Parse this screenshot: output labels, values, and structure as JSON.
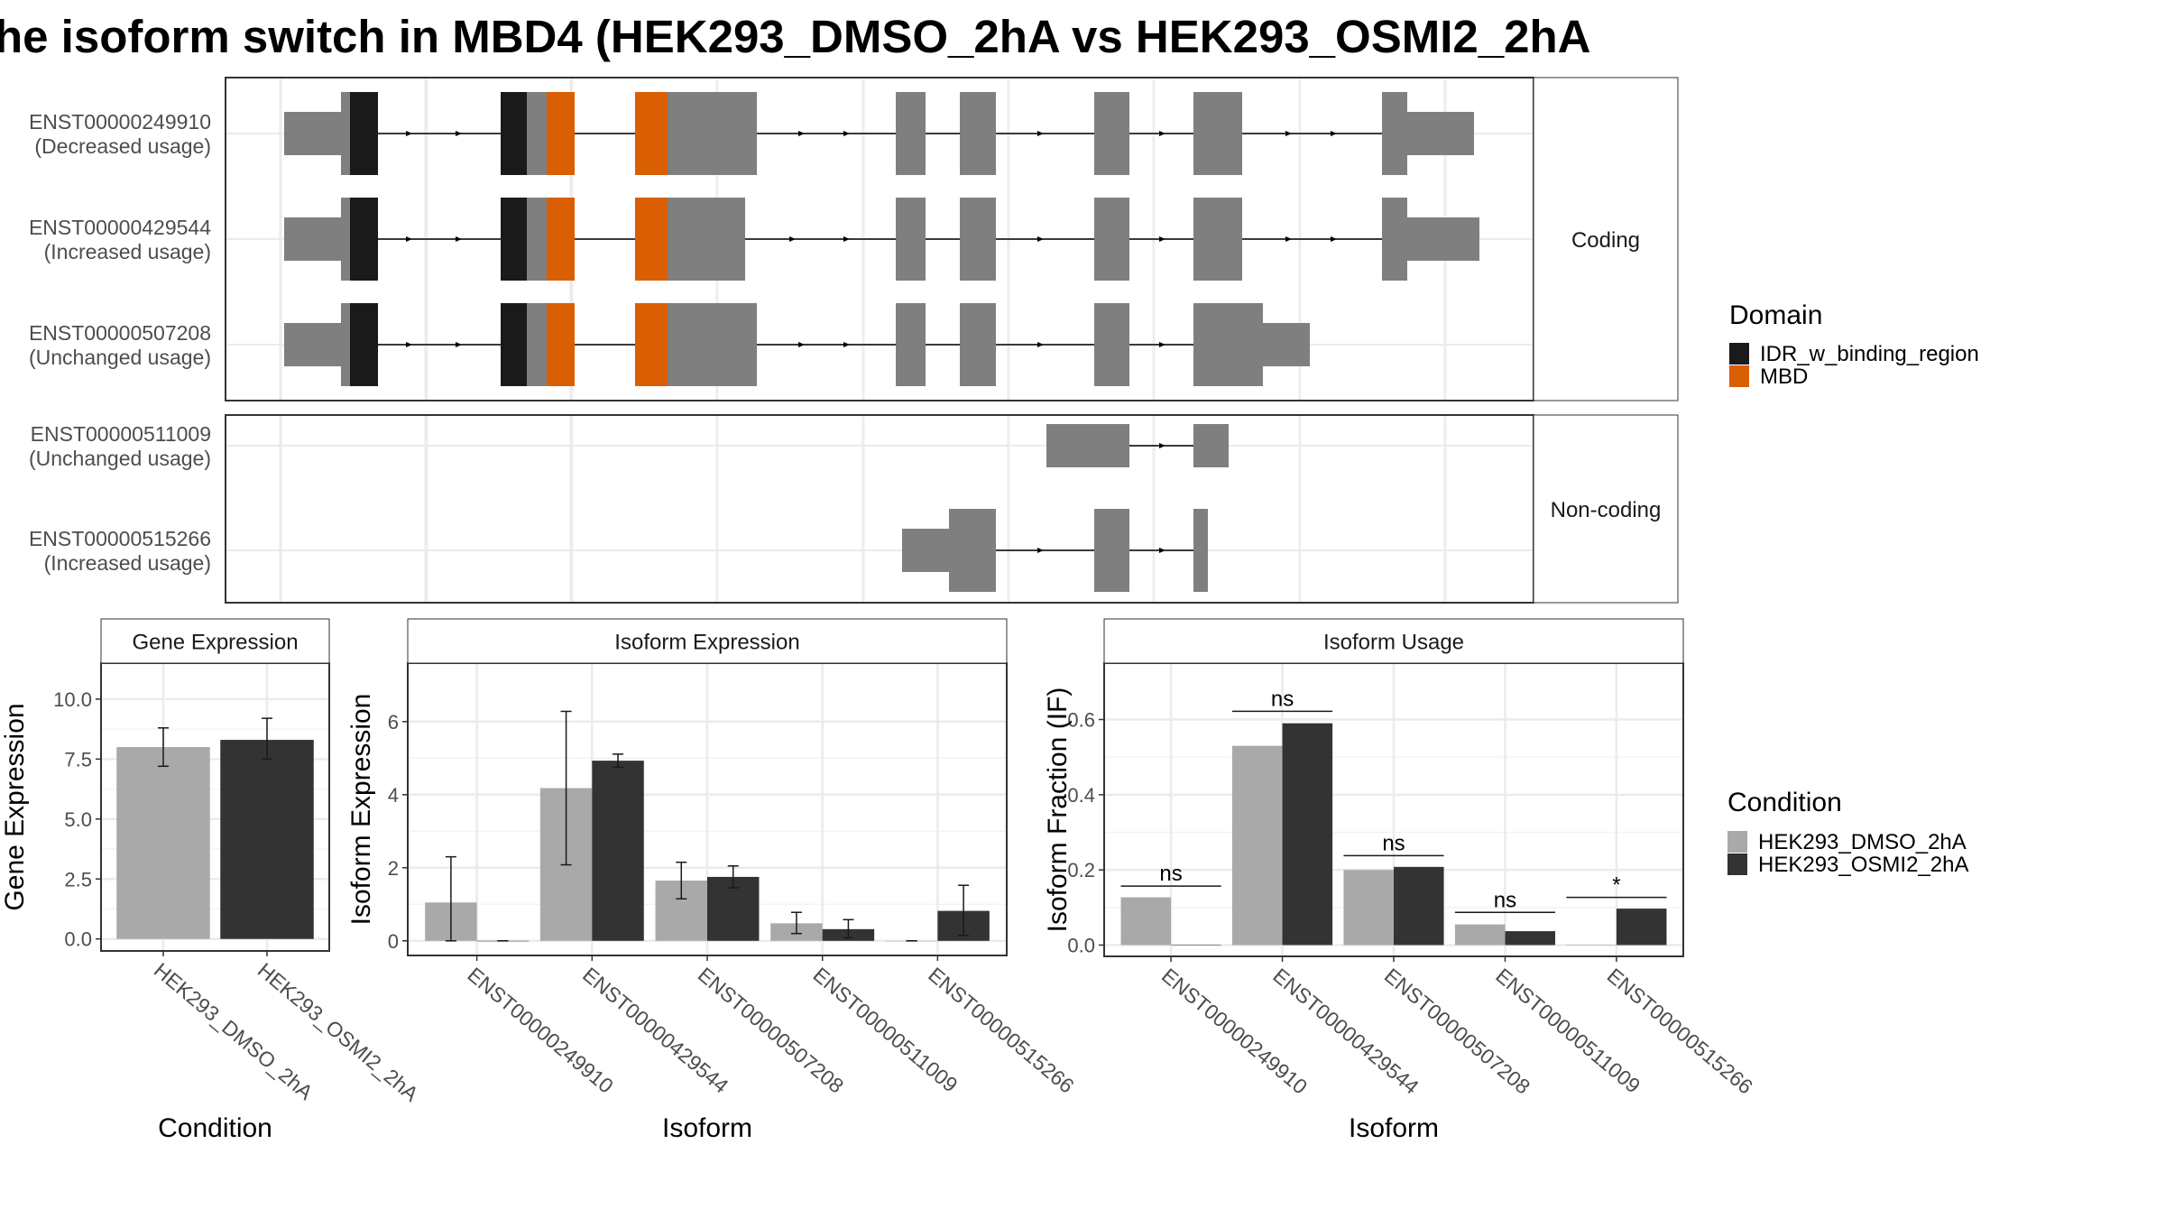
{
  "title": "he isoform switch in MBD4 (HEK293_DMSO_2hA vs HEK293_OSMI2_2hA",
  "colors": {
    "idr": "#1a1a1a",
    "mbd": "#d95f02",
    "exon": "#7f7f7f",
    "cond1": "#a9a9a9",
    "cond2": "#333333",
    "grid": "#ebebeb",
    "strip": "#ffffff"
  },
  "structure": {
    "coding_label": "Coding",
    "noncoding_label": "Non-coding",
    "isoforms": [
      {
        "id": "ENST00000249910",
        "usage": "(Decreased usage)",
        "group": "coding"
      },
      {
        "id": "ENST00000429544",
        "usage": "(Increased usage)",
        "group": "coding"
      },
      {
        "id": "ENST00000507208",
        "usage": "(Unchanged usage)",
        "group": "coding"
      },
      {
        "id": "ENST00000511009",
        "usage": "(Unchanged usage)",
        "group": "noncoding"
      },
      {
        "id": "ENST00000515266",
        "usage": "(Increased usage)",
        "group": "noncoding"
      }
    ]
  },
  "legend_domain": {
    "title": "Domain",
    "items": [
      {
        "label": "IDR_w_binding_region",
        "color": "#1a1a1a"
      },
      {
        "label": "MBD",
        "color": "#d95f02"
      }
    ]
  },
  "legend_condition": {
    "title": "Condition",
    "items": [
      {
        "label": "HEK293_DMSO_2hA",
        "color": "#a9a9a9"
      },
      {
        "label": "HEK293_OSMI2_2hA",
        "color": "#333333"
      }
    ]
  },
  "chart_data": [
    {
      "type": "bar",
      "title": "Gene Expression",
      "xlabel": "Condition",
      "ylabel": "Gene Expression",
      "categories": [
        "HEK293_DMSO_2hA",
        "HEK293_OSMI2_2hA"
      ],
      "values": [
        8.0,
        8.3
      ],
      "error_low": [
        7.2,
        7.5
      ],
      "error_high": [
        8.8,
        9.2
      ],
      "ylim": [
        -0.5,
        11.5
      ],
      "yticks": [
        0.0,
        2.5,
        5.0,
        7.5,
        10.0
      ],
      "ytick_labels": [
        "0.0",
        "2.5",
        "5.0",
        "7.5",
        "10.0"
      ],
      "grid": true
    },
    {
      "type": "bar",
      "title": "Isoform Expression",
      "xlabel": "Isoform",
      "ylabel": "Isoform Expression",
      "categories": [
        "ENST00000249910",
        "ENST00000429544",
        "ENST00000507208",
        "ENST00000511009",
        "ENST00000515266"
      ],
      "series": [
        {
          "name": "HEK293_DMSO_2hA",
          "values": [
            1.05,
            4.18,
            1.65,
            0.48,
            0.0
          ],
          "error_low": [
            0.0,
            2.08,
            1.15,
            0.2,
            0.0
          ],
          "error_high": [
            2.3,
            6.28,
            2.15,
            0.78,
            0.0
          ]
        },
        {
          "name": "HEK293_OSMI2_2hA",
          "values": [
            0.0,
            4.93,
            1.75,
            0.32,
            0.82
          ],
          "error_low": [
            0.0,
            4.75,
            1.45,
            0.08,
            0.15
          ],
          "error_high": [
            0.0,
            5.11,
            2.05,
            0.58,
            1.52
          ]
        }
      ],
      "ylim": [
        -0.4,
        7.6
      ],
      "yticks": [
        0,
        2,
        4,
        6
      ],
      "ytick_labels": [
        "0",
        "2",
        "4",
        "6"
      ],
      "grid": true
    },
    {
      "type": "bar",
      "title": "Isoform Usage",
      "xlabel": "Isoform",
      "ylabel": "Isoform Fraction (IF)",
      "categories": [
        "ENST00000249910",
        "ENST00000429544",
        "ENST00000507208",
        "ENST00000511009",
        "ENST00000515266"
      ],
      "series": [
        {
          "name": "HEK293_DMSO_2hA",
          "values": [
            0.127,
            0.53,
            0.2,
            0.055,
            0.0
          ]
        },
        {
          "name": "HEK293_OSMI2_2hA",
          "values": [
            0.0,
            0.59,
            0.208,
            0.037,
            0.097
          ]
        }
      ],
      "significance": [
        {
          "label": "ns",
          "y": 0.157
        },
        {
          "label": "ns",
          "y": 0.622
        },
        {
          "label": "ns",
          "y": 0.238
        },
        {
          "label": "ns",
          "y": 0.087
        },
        {
          "label": "*",
          "y": 0.127
        }
      ],
      "ylim": [
        -0.03,
        0.75
      ],
      "yticks": [
        0.0,
        0.2,
        0.4,
        0.6
      ],
      "ytick_labels": [
        "0.0",
        "0.2",
        "0.4",
        "0.6"
      ],
      "grid": true
    }
  ]
}
